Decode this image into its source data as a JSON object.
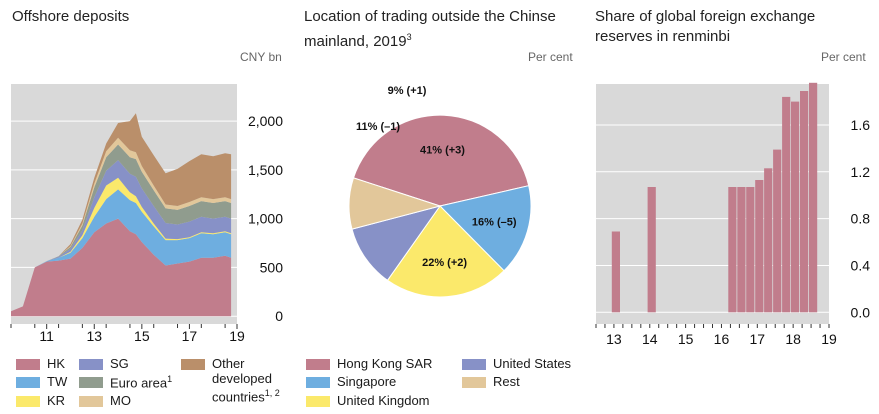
{
  "colors": {
    "HK": "#c17d8c",
    "TW": "#6eaee0",
    "KR": "#fbe96b",
    "SG": "#8791c7",
    "Euro": "#909c8e",
    "MO": "#e2c79a",
    "Other": "#ba8f6a",
    "grid": "#ffffff",
    "bg": "#d9d9d9"
  },
  "panels": {
    "deposits": {
      "title": "Offshore deposits",
      "unit": "CNY bn"
    },
    "trading": {
      "title_line1": "Location of trading outside the Chinse",
      "title_line2": "mainland, 2019",
      "title_sup": "3",
      "unit": "Per cent"
    },
    "reserves": {
      "title_line1": "Share of global foreign exchange",
      "title_line2": "reserves in renminbi",
      "unit": "Per cent"
    }
  },
  "legends": {
    "deposits": [
      {
        "key": "HK",
        "label": "HK",
        "sup": ""
      },
      {
        "key": "TW",
        "label": "TW",
        "sup": ""
      },
      {
        "key": "KR",
        "label": "KR",
        "sup": ""
      },
      {
        "key": "SG",
        "label": "SG",
        "sup": ""
      },
      {
        "key": "Euro",
        "label": "Euro area",
        "sup": "1"
      },
      {
        "key": "MO",
        "label": "MO",
        "sup": ""
      },
      {
        "key": "Other",
        "label": "Other developed countries",
        "sup": "1, 2"
      }
    ],
    "trading": [
      {
        "label": "Hong Kong SAR",
        "color": "#c17d8c"
      },
      {
        "label": "Singapore",
        "color": "#6eaee0"
      },
      {
        "label": "United Kingdom",
        "color": "#fbe96b"
      },
      {
        "label": "United States",
        "color": "#8791c7"
      },
      {
        "label": "Rest",
        "color": "#e2c79a"
      }
    ]
  },
  "chart_data": [
    {
      "type": "area",
      "title": "Offshore deposits",
      "ylabel": "CNY bn",
      "x_ticks": [
        "11",
        "13",
        "15",
        "17",
        "19"
      ],
      "y_ticks": [
        0,
        500,
        1000,
        1500,
        2000
      ],
      "ylim": [
        -80,
        2380
      ],
      "x": [
        2010.0,
        2010.5,
        2011.0,
        2011.5,
        2012.0,
        2012.5,
        2013.0,
        2013.5,
        2014.0,
        2014.5,
        2015.0,
        2015.25,
        2015.5,
        2016.0,
        2016.5,
        2017.0,
        2017.5,
        2018.0,
        2018.5,
        2019.0,
        2019.25
      ],
      "series": [
        {
          "name": "HK",
          "values": [
            50,
            100,
            500,
            560,
            570,
            590,
            700,
            860,
            950,
            1000,
            870,
            840,
            760,
            630,
            520,
            540,
            560,
            600,
            600,
            620,
            600
          ]
        },
        {
          "name": "TW",
          "values": [
            0,
            0,
            0,
            5,
            30,
            60,
            100,
            160,
            250,
            300,
            320,
            320,
            310,
            290,
            260,
            240,
            240,
            250,
            240,
            240,
            240
          ]
        },
        {
          "name": "KR",
          "values": [
            0,
            0,
            0,
            0,
            0,
            10,
            30,
            90,
            140,
            120,
            80,
            70,
            50,
            30,
            15,
            10,
            10,
            10,
            10,
            10,
            10
          ]
        },
        {
          "name": "SG",
          "values": [
            0,
            0,
            0,
            0,
            10,
            30,
            50,
            110,
            150,
            180,
            190,
            200,
            190,
            180,
            160,
            150,
            160,
            160,
            150,
            150,
            150
          ]
        },
        {
          "name": "Euro",
          "values": [
            0,
            0,
            0,
            0,
            5,
            20,
            50,
            100,
            140,
            160,
            170,
            180,
            170,
            160,
            150,
            150,
            160,
            160,
            160,
            160,
            160
          ]
        },
        {
          "name": "MO",
          "values": [
            0,
            0,
            0,
            0,
            0,
            10,
            20,
            40,
            60,
            70,
            70,
            70,
            60,
            50,
            40,
            40,
            40,
            40,
            40,
            40,
            40
          ]
        },
        {
          "name": "Other",
          "values": [
            0,
            0,
            0,
            0,
            0,
            20,
            40,
            60,
            80,
            150,
            300,
            400,
            300,
            310,
            320,
            380,
            420,
            440,
            440,
            450,
            460
          ]
        }
      ]
    },
    {
      "type": "pie",
      "title": "Location of trading outside the Chinse mainland, 2019",
      "ylabel": "Per cent",
      "slices": [
        {
          "name": "Hong Kong SAR",
          "value": 41,
          "label": "41% (+3)"
        },
        {
          "name": "Singapore",
          "value": 16,
          "label": "16% (–5)"
        },
        {
          "name": "United Kingdom",
          "value": 22,
          "label": "22% (+2)"
        },
        {
          "name": "United States",
          "value": 11,
          "label": "11% (–1)"
        },
        {
          "name": "Rest",
          "value": 9,
          "label": "9% (+1)"
        }
      ]
    },
    {
      "type": "bar",
      "title": "Share of global foreign exchange reserves in renminbi",
      "ylabel": "Per cent",
      "x_ticks": [
        "13",
        "14",
        "15",
        "16",
        "17",
        "18",
        "19"
      ],
      "y_ticks": [
        "0.0",
        "0.4",
        "0.8",
        "1.2",
        "1.6"
      ],
      "ylim": [
        -0.1,
        1.95
      ],
      "bars": [
        {
          "x": 2013.75,
          "value": 0.0
        },
        {
          "x": 2013.25,
          "value": 0.0
        },
        {
          "x": 2013.5,
          "value": 0.0
        },
        {
          "x": 2013.5,
          "value": 0.0
        },
        {
          "x": 2013.5,
          "value": 0.0
        },
        {
          "x": 2013.5,
          "value": 0.0
        }
      ],
      "series": [
        {
          "values": [
            {
              "x": 2013.5,
              "value": 0.69
            },
            {
              "x": 2014.5,
              "value": 1.07
            },
            {
              "x": 2016.75,
              "value": 1.07
            },
            {
              "x": 2017.0,
              "value": 1.07
            },
            {
              "x": 2017.25,
              "value": 1.07
            },
            {
              "x": 2017.5,
              "value": 1.13
            },
            {
              "x": 2017.75,
              "value": 1.23
            },
            {
              "x": 2018.0,
              "value": 1.39
            },
            {
              "x": 2018.25,
              "value": 1.84
            },
            {
              "x": 2018.5,
              "value": 1.8
            },
            {
              "x": 2018.75,
              "value": 1.89
            },
            {
              "x": 2019.0,
              "value": 1.96
            }
          ]
        }
      ]
    }
  ]
}
